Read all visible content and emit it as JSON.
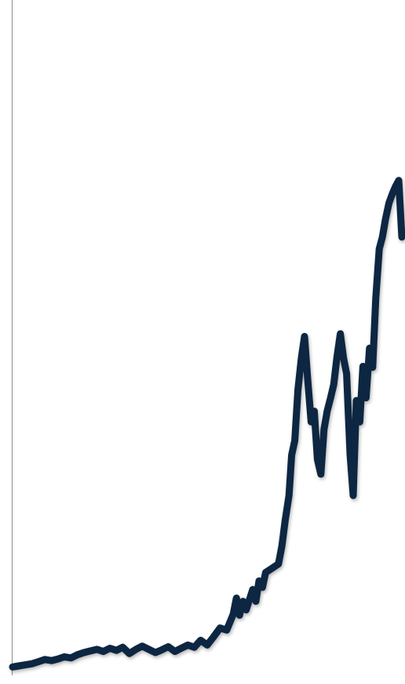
{
  "chart_data": {
    "type": "line",
    "title": "",
    "xlabel": "",
    "ylabel": "",
    "grid": false,
    "legend": "none",
    "xlim": [
      0,
      100
    ],
    "ylim": [
      0,
      100
    ],
    "x": [
      0,
      1.6,
      3.3,
      5.0,
      6.7,
      8.3,
      10.0,
      11.7,
      13.3,
      15.0,
      16.7,
      18.3,
      20.0,
      21.7,
      23.3,
      25.0,
      26.7,
      28.3,
      30.0,
      31.7,
      33.3,
      35.0,
      36.7,
      38.3,
      40.0,
      41.7,
      43.3,
      45.0,
      46.7,
      48.3,
      50.0,
      51.7,
      53.3,
      55.0,
      56.7,
      57.5,
      58.3,
      59.2,
      60.0,
      61.7,
      62.5,
      63.3,
      64.2,
      65.0,
      66.7,
      68.3,
      69.2,
      70.0,
      71.0,
      71.7,
      72.5,
      73.3,
      74.2,
      75.0,
      75.8,
      76.7,
      77.5,
      78.3,
      79.2,
      80.0,
      80.8,
      81.7,
      82.5,
      83.3,
      84.2,
      85.0,
      85.8,
      86.7,
      87.5,
      88.3,
      89.2,
      90.0,
      90.8,
      91.7,
      92.5,
      93.3,
      94.2,
      95.0,
      95.8,
      96.7,
      97.5,
      98.3,
      99.2,
      100
    ],
    "series": [
      {
        "values": [
          0.1,
          0.3,
          0.5,
          0.7,
          1.1,
          1.5,
          1.3,
          1.6,
          2.0,
          1.8,
          2.4,
          2.8,
          3.1,
          3.4,
          3.0,
          3.6,
          3.2,
          3.8,
          2.6,
          3.4,
          4.0,
          3.4,
          2.8,
          3.3,
          3.9,
          3.0,
          3.6,
          4.2,
          3.8,
          5.1,
          4.2,
          5.8,
          7.4,
          7.0,
          10.0,
          13.0,
          9.8,
          12.4,
          10.8,
          14.6,
          12.4,
          16.2,
          15.0,
          17.8,
          18.6,
          19.4,
          22.8,
          27.4,
          32.2,
          39.8,
          42.5,
          52.0,
          58.0,
          62.0,
          54.0,
          46.0,
          48.0,
          39.0,
          36.2,
          44.6,
          48.0,
          50.5,
          53.0,
          58.0,
          62.5,
          58.0,
          55.0,
          40.0,
          32.2,
          50.0,
          46.0,
          56.4,
          50.5,
          59.8,
          56.2,
          69.2,
          78.4,
          80.6,
          84.0,
          87.0,
          88.6,
          90.0,
          91.2,
          80.6
        ]
      }
    ],
    "colors": {
      "line": "#0f2742",
      "axis": "#8c8c8c",
      "background": "#ffffff"
    }
  }
}
